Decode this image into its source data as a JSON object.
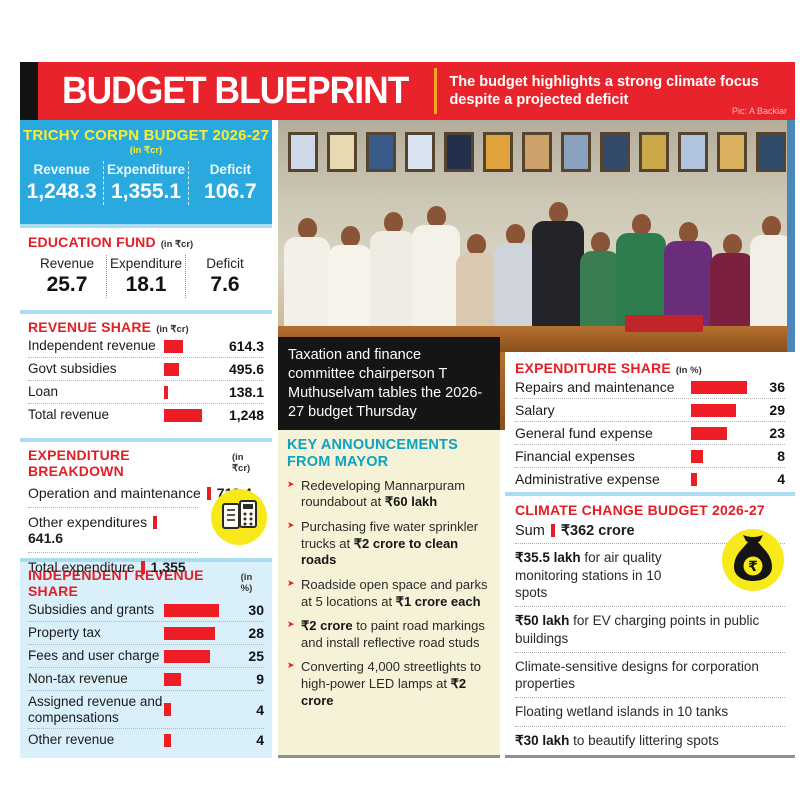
{
  "header": {
    "title": "BUDGET BLUEPRINT",
    "subtitle": "The budget highlights a strong climate focus despite a projected deficit",
    "credit": "Pic: A Backiar"
  },
  "summary": {
    "title": "TRICHY CORPN BUDGET 2026-27",
    "unit": "(in ₹cr)",
    "columns": [
      {
        "label": "Revenue",
        "value": "1,248.3"
      },
      {
        "label": "Expenditure",
        "value": "1,355.1"
      },
      {
        "label": "Deficit",
        "value": "106.7"
      }
    ]
  },
  "education_fund": {
    "title": "EDUCATION FUND",
    "unit": "(in ₹cr)",
    "columns": [
      {
        "label": "Revenue",
        "value": "25.7"
      },
      {
        "label": "Expenditure",
        "value": "18.1"
      },
      {
        "label": "Deficit",
        "value": "7.6"
      }
    ]
  },
  "photo": {
    "caption": "Taxation and finance committee chairperson T Muthuselvam tables the 2026-27 budget Thursday"
  },
  "announcements": {
    "title": "KEY ANNOUNCEMENTS FROM MAYOR",
    "items": [
      [
        {
          "t": "Redeveloping Mannarpuram roundabout at ",
          "b": false
        },
        {
          "t": "₹60 lakh",
          "b": true
        }
      ],
      [
        {
          "t": "Purchasing five water sprinkler trucks at ",
          "b": false
        },
        {
          "t": "₹2 crore to clean roads",
          "b": true
        }
      ],
      [
        {
          "t": "Roadside open space and parks at 5 locations at ",
          "b": false
        },
        {
          "t": "₹1 crore each",
          "b": true
        }
      ],
      [
        {
          "t": "₹2 crore",
          "b": true
        },
        {
          "t": " to paint road markings and install reflective road studs",
          "b": false
        }
      ],
      [
        {
          "t": "Converting 4,000 streetlights to high-power LED lamps at ",
          "b": false
        },
        {
          "t": "₹2 crore",
          "b": true
        }
      ]
    ]
  },
  "climate": {
    "title": "CLIMATE CHANGE BUDGET 2026-27",
    "sum_label": "Sum",
    "sum_value": "₹362 crore",
    "items": [
      [
        {
          "t": "₹35.5 lakh",
          "b": true
        },
        {
          "t": " for air quality monitoring stations in 10 spots",
          "b": false
        }
      ],
      [
        {
          "t": "₹50 lakh",
          "b": true
        },
        {
          "t": " for EV charging points in public buildings",
          "b": false
        }
      ],
      [
        {
          "t": "Climate-sensitive designs for corporation properties",
          "b": false
        }
      ],
      [
        {
          "t": "Floating wetland islands in 10 tanks",
          "b": false
        }
      ],
      [
        {
          "t": "₹30 lakh",
          "b": true
        },
        {
          "t": " to beautify littering spots",
          "b": false
        }
      ]
    ]
  },
  "icons": {
    "arrow_bullet": "➤",
    "rupee": "₹"
  },
  "colors": {
    "header_red": "#e8232b",
    "accent_red": "#e31e25",
    "bar_red": "#ee1c25",
    "panel_blue": "#2aa9de",
    "title_yellow": "#f9ed32",
    "cream": "#f6f2d7",
    "teal": "#0aa3c2",
    "light_cyan": "#d9effa",
    "separator_blue": "#aadcf1",
    "icon_yellow": "#f8ea1a"
  },
  "chart_data": [
    {
      "id": "revenue_share",
      "type": "bar",
      "title": "REVENUE SHARE",
      "unit": "(in ₹cr)",
      "categories": [
        "Independent revenue",
        "Govt subsidies",
        "Loan",
        "Total revenue"
      ],
      "values": [
        614.3,
        495.6,
        138.1,
        1248
      ],
      "value_labels": [
        "614.3",
        "495.6",
        "138.1",
        "1,248"
      ],
      "xlim": [
        0,
        1248
      ],
      "xlabel": "",
      "ylabel": ""
    },
    {
      "id": "expenditure_breakdown",
      "type": "table",
      "title": "EXPENDITURE BREAKDOWN",
      "unit": "(in ₹cr)",
      "rows": [
        {
          "label": "Operation and maintenance",
          "value": "713.4"
        },
        {
          "label": "Other expenditures",
          "value": "641.6"
        },
        {
          "label": "Total expenditure",
          "value": "1,355"
        }
      ]
    },
    {
      "id": "independent_revenue_share",
      "type": "bar",
      "title": "INDEPENDENT REVENUE SHARE",
      "unit": "(in %)",
      "categories": [
        "Subsidies and grants",
        "Property tax",
        "Fees and user charge",
        "Non-tax revenue",
        "Assigned revenue and compensations",
        "Other revenue"
      ],
      "values": [
        30,
        28,
        25,
        9,
        4,
        4
      ],
      "xlim": [
        0,
        30
      ],
      "xlabel": "",
      "ylabel": ""
    },
    {
      "id": "expenditure_share",
      "type": "bar",
      "title": "EXPENDITURE SHARE",
      "unit": "(in %)",
      "categories": [
        "Repairs and maintenance",
        "Salary",
        "General fund expense",
        "Financial expenses",
        "Administrative expense"
      ],
      "values": [
        36,
        29,
        23,
        8,
        4
      ],
      "xlim": [
        0,
        36
      ],
      "xlabel": "",
      "ylabel": ""
    }
  ]
}
